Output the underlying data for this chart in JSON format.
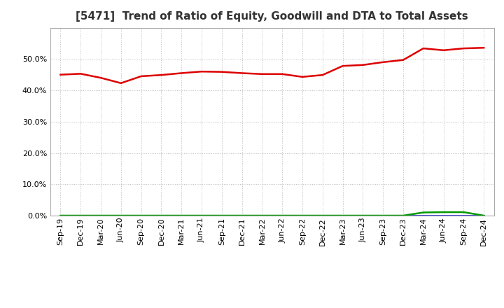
{
  "title": "[5471]  Trend of Ratio of Equity, Goodwill and DTA to Total Assets",
  "x_labels": [
    "Sep-19",
    "Dec-19",
    "Mar-20",
    "Jun-20",
    "Sep-20",
    "Dec-20",
    "Mar-21",
    "Jun-21",
    "Sep-21",
    "Dec-21",
    "Mar-22",
    "Jun-22",
    "Sep-22",
    "Dec-22",
    "Mar-23",
    "Jun-23",
    "Sep-23",
    "Dec-23",
    "Mar-24",
    "Jun-24",
    "Sep-24",
    "Dec-24"
  ],
  "equity": [
    0.45,
    0.453,
    0.44,
    0.423,
    0.445,
    0.449,
    0.455,
    0.46,
    0.459,
    0.455,
    0.452,
    0.452,
    0.443,
    0.449,
    0.478,
    0.481,
    0.49,
    0.497,
    0.534,
    0.528,
    0.534,
    0.536
  ],
  "goodwill": [
    0.0,
    0.0,
    0.0,
    0.0,
    0.0,
    0.0,
    0.0,
    0.0,
    0.0,
    0.0,
    0.0,
    0.0,
    0.0,
    0.0,
    0.0,
    0.0,
    0.0,
    0.0,
    0.0,
    0.0,
    0.0,
    0.0
  ],
  "dta": [
    0.0,
    0.0,
    0.0,
    0.0,
    0.0,
    0.0,
    0.0,
    0.0,
    0.0,
    0.0,
    0.0,
    0.0,
    0.0,
    0.0,
    0.0,
    0.0,
    0.0,
    0.0,
    0.01,
    0.011,
    0.011,
    0.0
  ],
  "equity_color": "#dd0000",
  "goodwill_color": "#0000cc",
  "dta_color": "#009900",
  "ylim": [
    0.0,
    0.6
  ],
  "yticks": [
    0.0,
    0.1,
    0.2,
    0.3,
    0.4,
    0.5
  ],
  "background_color": "#ffffff",
  "plot_bg_color": "#ffffff",
  "grid_color": "#bbbbbb",
  "title_fontsize": 11,
  "tick_fontsize": 8,
  "legend_fontsize": 9
}
